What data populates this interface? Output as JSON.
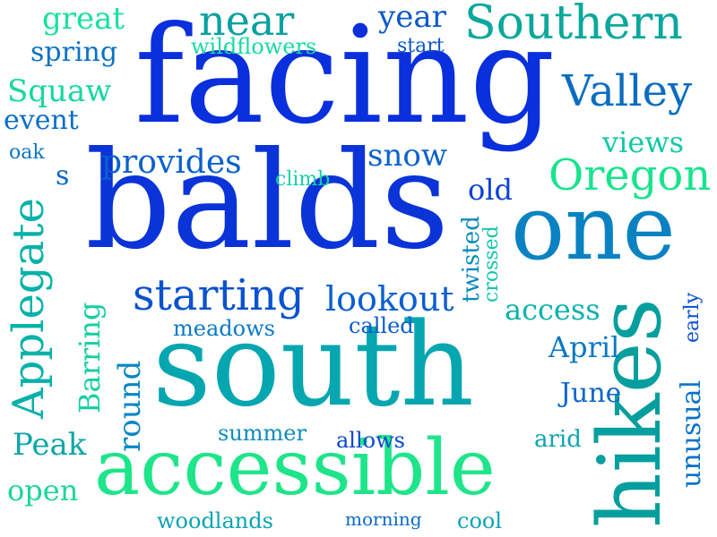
{
  "words": [
    {
      "text": "facing",
      "color": "#0a2fdc"
    },
    {
      "text": "balds",
      "color": "#0a34d8"
    },
    {
      "text": "south",
      "color": "#05a6b0"
    },
    {
      "text": "accessible",
      "color": "#1ee58a"
    },
    {
      "text": "one",
      "color": "#0a82c2"
    },
    {
      "text": "hikes",
      "color": "#039e9e"
    },
    {
      "text": "Southern",
      "color": "#0aa89c"
    },
    {
      "text": "near",
      "color": "#08a0a0"
    },
    {
      "text": "Valley",
      "color": "#0a6dc0"
    },
    {
      "text": "Oregon",
      "color": "#18e38e"
    },
    {
      "text": "starting",
      "color": "#0a52cf"
    },
    {
      "text": "Applegate",
      "color": "#07b2a8"
    },
    {
      "text": "lookout",
      "color": "#0a5fd0"
    },
    {
      "text": "provides",
      "color": "#0a60cc"
    },
    {
      "text": "great",
      "color": "#18e0a0"
    },
    {
      "text": "year",
      "color": "#0a58c8"
    },
    {
      "text": "Squaw",
      "color": "#16d7a2"
    },
    {
      "text": "spring",
      "color": "#0a72c4"
    },
    {
      "text": "event",
      "color": "#0a6ec8"
    },
    {
      "text": "snow",
      "color": "#0a62cc"
    },
    {
      "text": "views",
      "color": "#10c9a6"
    },
    {
      "text": "access",
      "color": "#0ab2ae"
    },
    {
      "text": "April",
      "color": "#0a78c4"
    },
    {
      "text": "June",
      "color": "#0a68ca"
    },
    {
      "text": "Peak",
      "color": "#0aa6a8"
    },
    {
      "text": "open",
      "color": "#1ad796"
    },
    {
      "text": "round",
      "color": "#0a86c4"
    },
    {
      "text": "Barring",
      "color": "#14cfa2"
    },
    {
      "text": "old",
      "color": "#0a40d6"
    },
    {
      "text": "wildflowers",
      "color": "#16dba0"
    },
    {
      "text": "start",
      "color": "#0a56cc"
    },
    {
      "text": "oak",
      "color": "#0a76c6"
    },
    {
      "text": "s",
      "color": "#0a66ca"
    },
    {
      "text": "climb",
      "color": "#14d2a6"
    },
    {
      "text": "twisted",
      "color": "#0a8ac0"
    },
    {
      "text": "crossed",
      "color": "#10c6ac"
    },
    {
      "text": "meadows",
      "color": "#0a7ac4"
    },
    {
      "text": "called",
      "color": "#0a5ccc"
    },
    {
      "text": "early",
      "color": "#0a50d2"
    },
    {
      "text": "unusual",
      "color": "#0a72c8"
    },
    {
      "text": "summer",
      "color": "#0a8cbc"
    },
    {
      "text": "allows",
      "color": "#0a48d2"
    },
    {
      "text": "arid",
      "color": "#0aa4b0"
    },
    {
      "text": "woodlands",
      "color": "#0aa4b0"
    },
    {
      "text": "morning",
      "color": "#0a6ac8"
    },
    {
      "text": "cool",
      "color": "#0aa4b4"
    }
  ]
}
